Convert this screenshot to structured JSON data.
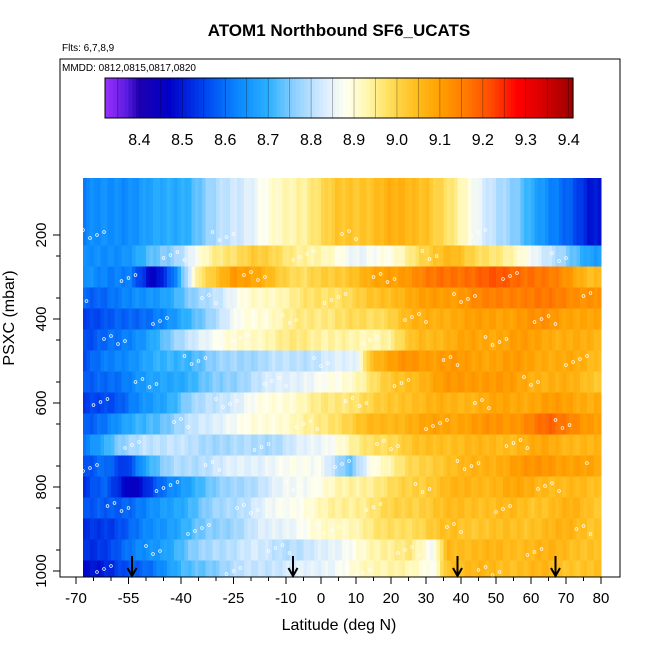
{
  "chart_data": {
    "type": "heatmap",
    "title": "ATOM1 Northbound SF6_UCATS",
    "flights_note": "Flts: 6,7,8,9",
    "dates_note": "MMDD: 0812,0815,0817,0820",
    "xlabel": "Latitude (deg N)",
    "ylabel": "PSXC (mbar)",
    "xlim": [
      -70,
      80
    ],
    "ylim": [
      1000,
      100
    ],
    "y_reversed": true,
    "x_ticks": [
      "-70",
      "-55",
      "-40",
      "-25",
      "-10",
      "0",
      "10",
      "20",
      "30",
      "40",
      "50",
      "60",
      "70",
      "80"
    ],
    "x_tick_values": [
      -70,
      -55,
      -40,
      -25,
      -10,
      0,
      10,
      20,
      30,
      40,
      50,
      60,
      70,
      80
    ],
    "x_minor_ticks": [
      -65,
      -60,
      -50,
      -45,
      -35,
      -30,
      -20,
      -15,
      -5,
      5,
      15,
      25,
      35,
      45,
      55,
      65,
      75
    ],
    "y_ticks": [
      "200",
      "400",
      "600",
      "800",
      "1000"
    ],
    "y_tick_values": [
      200,
      400,
      600,
      800,
      1000
    ],
    "colorbar": {
      "label_values": [
        "8.4",
        "8.5",
        "8.6",
        "8.7",
        "8.8",
        "8.9",
        "9.0",
        "9.1",
        "9.2",
        "9.3",
        "9.4"
      ],
      "min": 8.32,
      "max": 9.41,
      "stops": [
        {
          "v": 8.32,
          "c": "#9a30ff"
        },
        {
          "v": 8.37,
          "c": "#5b1ce0"
        },
        {
          "v": 8.4,
          "c": "#1d00b0"
        },
        {
          "v": 8.47,
          "c": "#0000c8"
        },
        {
          "v": 8.55,
          "c": "#0044f0"
        },
        {
          "v": 8.63,
          "c": "#0a88ff"
        },
        {
          "v": 8.7,
          "c": "#2ab0ff"
        },
        {
          "v": 8.76,
          "c": "#8ccfff"
        },
        {
          "v": 8.83,
          "c": "#d8ecff"
        },
        {
          "v": 8.88,
          "c": "#fffff0"
        },
        {
          "v": 8.93,
          "c": "#fff7b0"
        },
        {
          "v": 8.98,
          "c": "#ffe060"
        },
        {
          "v": 9.04,
          "c": "#ffc020"
        },
        {
          "v": 9.1,
          "c": "#ffa000"
        },
        {
          "v": 9.16,
          "c": "#ff7a00"
        },
        {
          "v": 9.22,
          "c": "#ff4a00"
        },
        {
          "v": 9.28,
          "c": "#ff0000"
        },
        {
          "v": 9.34,
          "c": "#d80000"
        },
        {
          "v": 9.41,
          "c": "#9a0000"
        }
      ]
    },
    "arrows_latitude": [
      -54,
      -8,
      39,
      67
    ],
    "bands": [
      {
        "p": 200,
        "cols": [
          [
            -70,
            8.62
          ],
          [
            -55,
            8.65
          ],
          [
            -40,
            8.7
          ],
          [
            -25,
            8.82
          ],
          [
            -10,
            8.92
          ],
          [
            5,
            9.02
          ],
          [
            20,
            9.06
          ],
          [
            30,
            9.05
          ],
          [
            40,
            8.92
          ],
          [
            52,
            8.78
          ],
          [
            62,
            8.68
          ],
          [
            72,
            8.56
          ],
          [
            76,
            8.5
          ]
        ]
      },
      {
        "p": 250,
        "cols": [
          [
            -70,
            8.62
          ],
          [
            -55,
            8.66
          ],
          [
            -42,
            8.78
          ],
          [
            -30,
            8.95
          ],
          [
            -20,
            9.02
          ],
          [
            -5,
            8.95
          ],
          [
            10,
            8.86
          ],
          [
            20,
            8.88
          ],
          [
            28,
            9.0
          ],
          [
            38,
            9.05
          ],
          [
            50,
            8.96
          ],
          [
            60,
            8.88
          ],
          [
            70,
            8.75
          ],
          [
            77,
            8.68
          ]
        ]
      },
      {
        "p": 300,
        "cols": [
          [
            -70,
            8.65
          ],
          [
            -55,
            8.62
          ],
          [
            -48,
            8.45
          ],
          [
            -42,
            8.62
          ],
          [
            -35,
            8.95
          ],
          [
            -25,
            9.12
          ],
          [
            -15,
            9.05
          ],
          [
            -5,
            8.98
          ],
          [
            10,
            9.05
          ],
          [
            20,
            9.1
          ],
          [
            30,
            9.15
          ],
          [
            40,
            9.18
          ],
          [
            50,
            9.2
          ],
          [
            60,
            9.18
          ],
          [
            70,
            9.12
          ],
          [
            77,
            9.05
          ]
        ]
      },
      {
        "p": 350,
        "cols": [
          [
            -70,
            8.58
          ],
          [
            -55,
            8.62
          ],
          [
            -42,
            8.7
          ],
          [
            -30,
            8.82
          ],
          [
            -20,
            8.9
          ],
          [
            -5,
            8.96
          ],
          [
            10,
            9.0
          ],
          [
            25,
            9.08
          ],
          [
            40,
            9.12
          ],
          [
            55,
            9.16
          ],
          [
            70,
            9.15
          ],
          [
            77,
            9.12
          ]
        ]
      },
      {
        "p": 400,
        "cols": [
          [
            -70,
            8.55
          ],
          [
            -55,
            8.58
          ],
          [
            -42,
            8.65
          ],
          [
            -32,
            8.78
          ],
          [
            -22,
            8.88
          ],
          [
            -10,
            8.94
          ],
          [
            5,
            8.98
          ],
          [
            15,
            8.98
          ],
          [
            25,
            9.05
          ],
          [
            35,
            9.08
          ],
          [
            50,
            9.1
          ],
          [
            65,
            9.12
          ],
          [
            77,
            9.08
          ]
        ]
      },
      {
        "p": 450,
        "cols": [
          [
            -70,
            8.55
          ],
          [
            -58,
            8.6
          ],
          [
            -45,
            8.72
          ],
          [
            -35,
            8.85
          ],
          [
            -20,
            8.92
          ],
          [
            -5,
            8.96
          ],
          [
            10,
            8.92
          ],
          [
            20,
            8.95
          ],
          [
            28,
            9.05
          ],
          [
            40,
            9.08
          ],
          [
            55,
            9.1
          ],
          [
            70,
            9.08
          ],
          [
            77,
            9.06
          ]
        ]
      },
      {
        "p": 500,
        "cols": [
          [
            -70,
            8.55
          ],
          [
            -60,
            8.62
          ],
          [
            -50,
            8.68
          ],
          [
            -38,
            8.72
          ],
          [
            -25,
            8.78
          ],
          [
            -10,
            8.8
          ],
          [
            0,
            8.82
          ],
          [
            10,
            8.84
          ],
          [
            14,
            9.05
          ],
          [
            25,
            9.12
          ],
          [
            40,
            9.1
          ],
          [
            55,
            9.1
          ],
          [
            70,
            9.08
          ],
          [
            78,
            9.05
          ]
        ]
      },
      {
        "p": 550,
        "cols": [
          [
            -70,
            8.55
          ],
          [
            -60,
            8.6
          ],
          [
            -50,
            8.66
          ],
          [
            -35,
            8.72
          ],
          [
            -20,
            8.8
          ],
          [
            -8,
            8.85
          ],
          [
            5,
            8.88
          ],
          [
            15,
            8.98
          ],
          [
            25,
            9.05
          ],
          [
            35,
            9.1
          ],
          [
            45,
            9.12
          ],
          [
            60,
            9.08
          ],
          [
            72,
            9.06
          ],
          [
            78,
            9.04
          ]
        ]
      },
      {
        "p": 600,
        "cols": [
          [
            -70,
            8.52
          ],
          [
            -58,
            8.58
          ],
          [
            -48,
            8.66
          ],
          [
            -38,
            8.76
          ],
          [
            -25,
            8.84
          ],
          [
            -12,
            8.9
          ],
          [
            0,
            8.95
          ],
          [
            15,
            9.0
          ],
          [
            25,
            9.05
          ],
          [
            35,
            9.06
          ],
          [
            50,
            9.08
          ],
          [
            65,
            9.1
          ],
          [
            78,
            9.08
          ]
        ]
      },
      {
        "p": 650,
        "cols": [
          [
            -70,
            8.55
          ],
          [
            -62,
            8.62
          ],
          [
            -52,
            8.7
          ],
          [
            -40,
            8.78
          ],
          [
            -28,
            8.86
          ],
          [
            -15,
            8.9
          ],
          [
            -2,
            8.94
          ],
          [
            6,
            9.0
          ],
          [
            15,
            9.05
          ],
          [
            28,
            9.08
          ],
          [
            40,
            9.1
          ],
          [
            55,
            9.12
          ],
          [
            65,
            9.18
          ],
          [
            72,
            9.15
          ],
          [
            78,
            9.1
          ]
        ]
      },
      {
        "p": 700,
        "cols": [
          [
            -70,
            8.6
          ],
          [
            -60,
            8.72
          ],
          [
            -50,
            8.82
          ],
          [
            -38,
            8.8
          ],
          [
            -25,
            8.78
          ],
          [
            -12,
            8.8
          ],
          [
            0,
            8.86
          ],
          [
            15,
            8.98
          ],
          [
            25,
            9.02
          ],
          [
            35,
            9.05
          ],
          [
            45,
            9.05
          ],
          [
            55,
            9.06
          ],
          [
            65,
            9.08
          ],
          [
            78,
            9.05
          ]
        ]
      },
      {
        "p": 750,
        "cols": [
          [
            -70,
            8.55
          ],
          [
            -62,
            8.6
          ],
          [
            -56,
            8.52
          ],
          [
            -50,
            8.7
          ],
          [
            -42,
            8.78
          ],
          [
            -30,
            8.82
          ],
          [
            -15,
            8.86
          ],
          [
            0,
            8.88
          ],
          [
            8,
            8.72
          ],
          [
            15,
            8.9
          ],
          [
            25,
            8.98
          ],
          [
            35,
            9.04
          ],
          [
            45,
            9.06
          ],
          [
            55,
            9.1
          ],
          [
            65,
            9.12
          ],
          [
            78,
            9.08
          ]
        ]
      },
      {
        "p": 800,
        "cols": [
          [
            -70,
            8.52
          ],
          [
            -62,
            8.58
          ],
          [
            -54,
            8.45
          ],
          [
            -45,
            8.6
          ],
          [
            -35,
            8.72
          ],
          [
            -20,
            8.8
          ],
          [
            -8,
            8.86
          ],
          [
            5,
            8.92
          ],
          [
            15,
            8.96
          ],
          [
            25,
            9.0
          ],
          [
            35,
            9.05
          ],
          [
            45,
            9.06
          ],
          [
            55,
            9.08
          ],
          [
            70,
            9.05
          ],
          [
            78,
            9.04
          ]
        ]
      },
      {
        "p": 850,
        "cols": [
          [
            -70,
            8.55
          ],
          [
            -60,
            8.58
          ],
          [
            -50,
            8.62
          ],
          [
            -40,
            8.7
          ],
          [
            -28,
            8.78
          ],
          [
            -15,
            8.85
          ],
          [
            0,
            8.92
          ],
          [
            12,
            8.96
          ],
          [
            22,
            9.0
          ],
          [
            32,
            9.03
          ],
          [
            45,
            9.05
          ],
          [
            60,
            9.04
          ],
          [
            72,
            9.06
          ],
          [
            78,
            9.04
          ]
        ]
      },
      {
        "p": 900,
        "cols": [
          [
            -70,
            8.5
          ],
          [
            -60,
            8.55
          ],
          [
            -50,
            8.62
          ],
          [
            -40,
            8.7
          ],
          [
            -30,
            8.76
          ],
          [
            -18,
            8.82
          ],
          [
            -5,
            8.88
          ],
          [
            8,
            8.93
          ],
          [
            18,
            8.97
          ],
          [
            28,
            9.0
          ],
          [
            38,
            9.04
          ],
          [
            50,
            9.03
          ],
          [
            62,
            9.05
          ],
          [
            72,
            9.06
          ],
          [
            78,
            9.04
          ]
        ]
      },
      {
        "p": 950,
        "cols": [
          [
            -70,
            8.5
          ],
          [
            -60,
            8.56
          ],
          [
            -50,
            8.64
          ],
          [
            -40,
            8.72
          ],
          [
            -30,
            8.8
          ],
          [
            -18,
            8.82
          ],
          [
            -5,
            8.8
          ],
          [
            5,
            8.86
          ],
          [
            15,
            8.92
          ],
          [
            25,
            8.98
          ],
          [
            32,
            8.85
          ],
          [
            36,
            9.06
          ],
          [
            48,
            9.05
          ],
          [
            60,
            9.06
          ],
          [
            72,
            9.05
          ],
          [
            78,
            9.04
          ]
        ]
      },
      {
        "p": 1000,
        "cols": [
          [
            -70,
            8.48
          ],
          [
            -60,
            8.52
          ],
          [
            -50,
            8.6
          ],
          [
            -40,
            8.7
          ],
          [
            -28,
            8.78
          ],
          [
            -15,
            8.82
          ],
          [
            -2,
            8.84
          ],
          [
            10,
            8.9
          ],
          [
            22,
            8.95
          ],
          [
            32,
            8.86
          ],
          [
            36,
            9.05
          ],
          [
            50,
            9.05
          ],
          [
            65,
            9.05
          ],
          [
            78,
            9.03
          ]
        ]
      }
    ]
  }
}
